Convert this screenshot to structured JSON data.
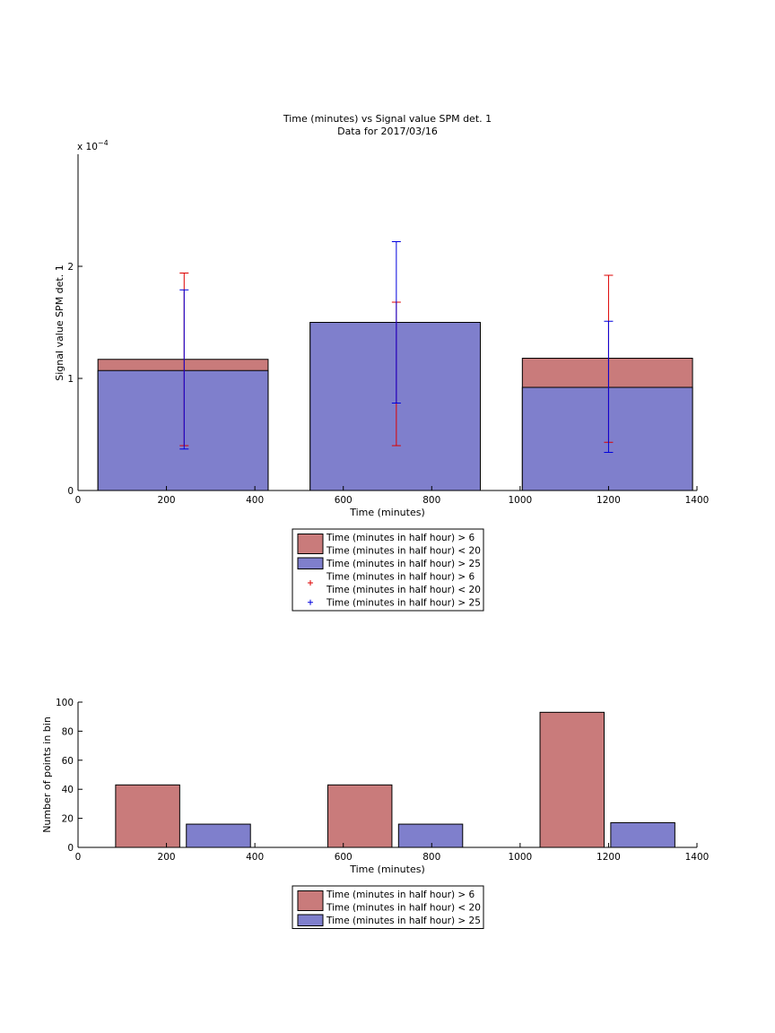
{
  "chart_data": [
    {
      "type": "bar",
      "title": "Time (minutes) vs Signal value SPM det. 1",
      "subtitle": "Data for 2017/03/16",
      "xlabel": "Time (minutes)",
      "ylabel": "Signal value SPM det. 1",
      "y_exponent_label": "x 10",
      "y_exponent_power": "−4",
      "xlim": [
        0,
        1400
      ],
      "ylim": [
        0,
        3
      ],
      "x_ticks": [
        "0",
        "200",
        "400",
        "600",
        "800",
        "1000",
        "1200",
        "1400"
      ],
      "y_ticks": [
        "0",
        "1",
        "2"
      ],
      "grid": false,
      "legend_position": "below",
      "bins": [
        {
          "x_start": 45,
          "x_end": 430,
          "center": 240
        },
        {
          "x_start": 525,
          "x_end": 910,
          "center": 720
        },
        {
          "x_start": 1005,
          "x_end": 1390,
          "center": 1200
        }
      ],
      "series": [
        {
          "name": "Time (minutes in half hour) > 6\nTime (minutes in half hour) < 20",
          "kind": "bar",
          "color": "#c97b7b",
          "values": [
            1.17,
            1.5,
            1.18
          ],
          "error_low": [
            0.4,
            0.4,
            0.43
          ],
          "error_high": [
            1.94,
            1.68,
            1.92
          ],
          "error_color": "#dd0000"
        },
        {
          "name": "Time (minutes in half hour) > 25",
          "kind": "bar",
          "color": "#7f7fcc",
          "values": [
            1.07,
            1.5,
            0.92
          ],
          "error_low": [
            0.37,
            0.78,
            0.34
          ],
          "error_high": [
            1.79,
            2.22,
            1.51
          ],
          "error_color": "#0000dd"
        }
      ],
      "legend": [
        {
          "marker": "patch",
          "color": "#c97b7b",
          "lines": [
            "Time (minutes in half hour) > 6",
            "Time (minutes in half hour) < 20"
          ]
        },
        {
          "marker": "patch",
          "color": "#7f7fcc",
          "lines": [
            "Time (minutes in half hour) > 25"
          ]
        },
        {
          "marker": "plus",
          "color": "#dd0000",
          "lines": [
            "Time (minutes in half hour) > 6",
            "Time (minutes in half hour) < 20"
          ]
        },
        {
          "marker": "plus",
          "color": "#0000dd",
          "lines": [
            "Time (minutes in half hour) > 25"
          ]
        }
      ]
    },
    {
      "type": "bar",
      "title": "",
      "xlabel": "Time (minutes)",
      "ylabel": "Number of points in bin",
      "xlim": [
        0,
        1400
      ],
      "ylim": [
        0,
        100
      ],
      "x_ticks": [
        "0",
        "200",
        "400",
        "600",
        "800",
        "1000",
        "1200",
        "1400"
      ],
      "y_ticks": [
        "0",
        "20",
        "40",
        "60",
        "80",
        "100"
      ],
      "grid": false,
      "legend_position": "below",
      "series": [
        {
          "name": "Time (minutes in half hour) > 6\nTime (minutes in half hour) < 20",
          "color": "#c97b7b",
          "bars": [
            {
              "x_start": 85,
              "x_end": 230,
              "value": 43
            },
            {
              "x_start": 565,
              "x_end": 710,
              "value": 43
            },
            {
              "x_start": 1045,
              "x_end": 1190,
              "value": 93
            }
          ]
        },
        {
          "name": "Time (minutes in half hour) > 25",
          "color": "#7f7fcc",
          "bars": [
            {
              "x_start": 245,
              "x_end": 390,
              "value": 16
            },
            {
              "x_start": 725,
              "x_end": 870,
              "value": 16
            },
            {
              "x_start": 1205,
              "x_end": 1350,
              "value": 17
            }
          ]
        }
      ],
      "legend": [
        {
          "marker": "patch",
          "color": "#c97b7b",
          "lines": [
            "Time (minutes in half hour) > 6",
            "Time (minutes in half hour) < 20"
          ]
        },
        {
          "marker": "patch",
          "color": "#7f7fcc",
          "lines": [
            "Time (minutes in half hour) > 25"
          ]
        }
      ]
    }
  ]
}
